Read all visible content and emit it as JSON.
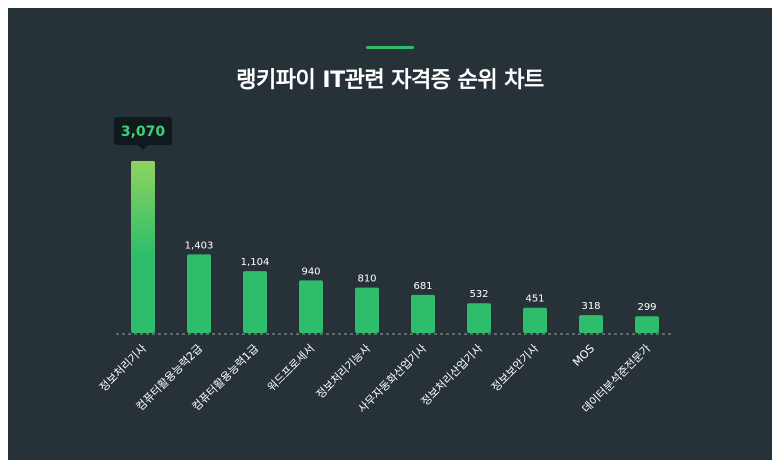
{
  "colors": {
    "background": "#263238",
    "bar": "#2ebd6b",
    "bar_top_highlight": "#8fd45f",
    "accent": "#2ebd6b",
    "tooltip_bg": "#10191d",
    "tooltip_text": "#3fd07a",
    "text": "#ffffff"
  },
  "chart_data": {
    "type": "bar",
    "title": "랭키파이 IT관련 자격증 순위 차트",
    "categories": [
      "정보처리기사",
      "컴퓨터활용능력2급",
      "컴퓨터활용능력1급",
      "워드프로세서",
      "정보처리기능사",
      "사무자동화산업기사",
      "정보처리산업기사",
      "정보보안기사",
      "MOS",
      "데이터분석준전문가"
    ],
    "values": [
      3070,
      1403,
      1104,
      940,
      810,
      681,
      532,
      451,
      318,
      299
    ],
    "value_labels": [
      "3,070",
      "1,403",
      "1,104",
      "940",
      "810",
      "681",
      "532",
      "451",
      "318",
      "299"
    ],
    "highlighted_index": 0,
    "xlabel": "",
    "ylabel": "",
    "ylim": [
      0,
      3070
    ],
    "grid": false
  }
}
